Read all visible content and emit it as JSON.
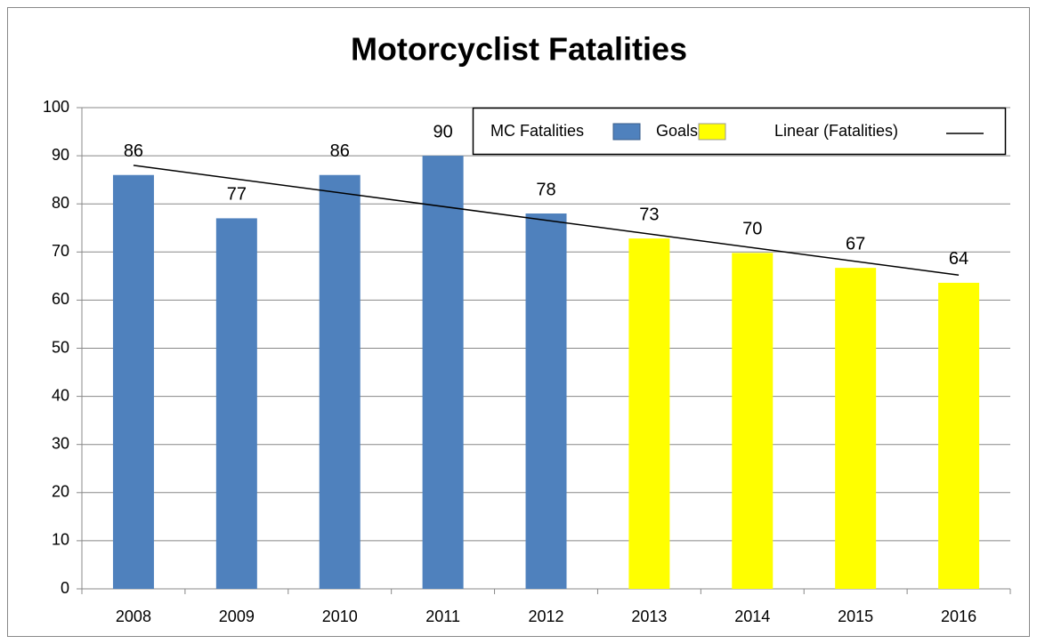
{
  "chart_data": {
    "type": "bar",
    "title": "Motorcyclist Fatalities",
    "categories": [
      "2008",
      "2009",
      "2010",
      "2011",
      "2012",
      "2013",
      "2014",
      "2015",
      "2016"
    ],
    "series": [
      {
        "name": "MC Fatalities",
        "color": "#4f81bd",
        "values": [
          86,
          77,
          86,
          90,
          78,
          null,
          null,
          null,
          null
        ]
      },
      {
        "name": "Goals",
        "color": "#ffff00",
        "values": [
          null,
          null,
          null,
          null,
          null,
          72.8,
          69.8,
          66.7,
          63.6
        ],
        "value_labels": [
          null,
          null,
          null,
          null,
          null,
          "73",
          "70",
          "67",
          "64"
        ]
      }
    ],
    "trendline": {
      "name": "Linear (Fatalities)",
      "color": "#000000",
      "x": [
        "2008",
        "2016"
      ],
      "values": [
        88,
        65.2
      ]
    },
    "ylim": [
      0,
      100
    ],
    "yticks": [
      0,
      10,
      20,
      30,
      40,
      50,
      60,
      70,
      80,
      90,
      100
    ],
    "grid": true
  }
}
